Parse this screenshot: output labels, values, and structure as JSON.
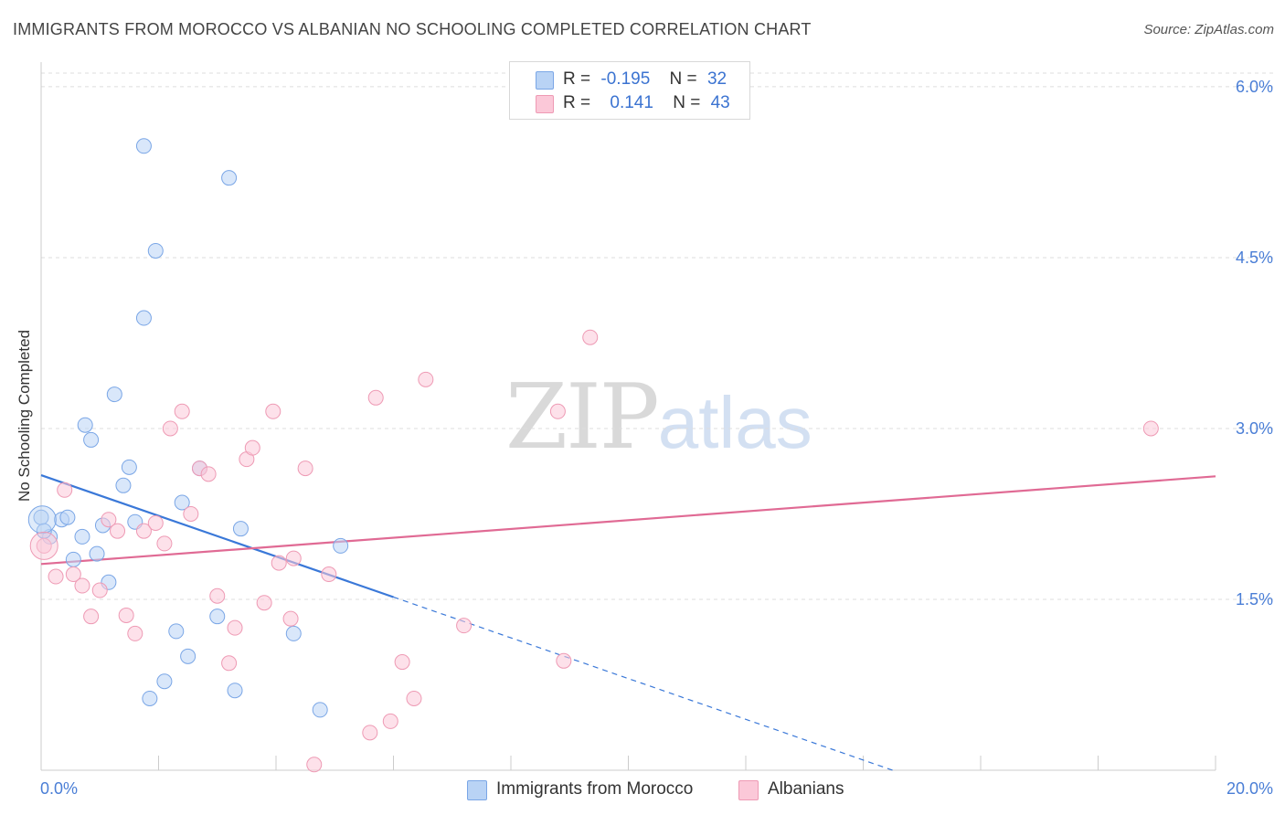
{
  "title": "IMMIGRANTS FROM MOROCCO VS ALBANIAN NO SCHOOLING COMPLETED CORRELATION CHART",
  "source": "Source: ZipAtlas.com",
  "watermark": {
    "zip": "ZIP",
    "atlas": "atlas"
  },
  "legend": {
    "rows": [
      {
        "r_label": "R =",
        "r_value": "-0.195",
        "n_label": "N =",
        "n_value": "32",
        "color": "#b9d3f5",
        "border": "#7aa6e6"
      },
      {
        "r_label": "R =",
        "r_value": "0.141",
        "n_label": "N =",
        "n_value": "43",
        "color": "#fbc8d8",
        "border": "#ee9ab4"
      }
    ]
  },
  "bottom_legend": [
    {
      "label": "Immigrants from Morocco",
      "color": "#b9d3f5",
      "border": "#7aa6e6"
    },
    {
      "label": "Albanians",
      "color": "#fbc8d8",
      "border": "#ee9ab4"
    }
  ],
  "chart_data": {
    "type": "scatter",
    "title": "IMMIGRANTS FROM MOROCCO VS ALBANIAN NO SCHOOLING COMPLETED CORRELATION CHART",
    "xlabel": "",
    "ylabel": "No Schooling Completed",
    "xlim": [
      0,
      20
    ],
    "ylim": [
      0,
      6.2
    ],
    "x_ticks": [
      "0.0%",
      "20.0%"
    ],
    "y_ticks": [
      {
        "value": 1.5,
        "label": "1.5%"
      },
      {
        "value": 3.0,
        "label": "3.0%"
      },
      {
        "value": 4.5,
        "label": "4.5%"
      },
      {
        "value": 6.0,
        "label": "6.0%"
      }
    ],
    "grid": "horizontal dashed",
    "legend_position": "top-center",
    "series": [
      {
        "name": "Immigrants from Morocco",
        "color": "#7aa6e6",
        "fill": "#b9d3f5",
        "r": -0.195,
        "n": 32,
        "trend": {
          "x0": 0,
          "y0": 2.59,
          "x1": 6.0,
          "y1": 1.52,
          "dash_to_x": 14.5,
          "dash_to_y": 0.0
        },
        "points": [
          [
            0.0,
            2.22
          ],
          [
            0.15,
            2.05
          ],
          [
            0.35,
            2.2
          ],
          [
            0.45,
            2.22
          ],
          [
            0.55,
            1.85
          ],
          [
            0.7,
            2.05
          ],
          [
            0.75,
            3.03
          ],
          [
            0.85,
            2.9
          ],
          [
            0.95,
            1.9
          ],
          [
            1.05,
            2.15
          ],
          [
            1.15,
            1.65
          ],
          [
            1.25,
            3.3
          ],
          [
            1.4,
            2.5
          ],
          [
            1.5,
            2.66
          ],
          [
            1.6,
            2.18
          ],
          [
            1.75,
            3.97
          ],
          [
            1.75,
            5.48
          ],
          [
            1.85,
            0.63
          ],
          [
            1.95,
            4.56
          ],
          [
            2.1,
            0.78
          ],
          [
            2.3,
            1.22
          ],
          [
            2.4,
            2.35
          ],
          [
            2.5,
            1.0
          ],
          [
            2.7,
            2.65
          ],
          [
            3.0,
            1.35
          ],
          [
            3.2,
            5.2
          ],
          [
            3.3,
            0.7
          ],
          [
            3.4,
            2.12
          ],
          [
            4.3,
            1.2
          ],
          [
            4.75,
            0.53
          ],
          [
            5.1,
            1.97
          ],
          [
            0.05,
            2.1
          ]
        ]
      },
      {
        "name": "Albanians",
        "color": "#ee9ab4",
        "fill": "#fbc8d8",
        "r": 0.141,
        "n": 43,
        "trend": {
          "x0": 0,
          "y0": 1.81,
          "x1": 20,
          "y1": 2.58
        },
        "points": [
          [
            0.05,
            1.97
          ],
          [
            0.25,
            1.7
          ],
          [
            0.4,
            2.46
          ],
          [
            0.55,
            1.72
          ],
          [
            0.7,
            1.62
          ],
          [
            0.85,
            1.35
          ],
          [
            1.0,
            1.58
          ],
          [
            1.15,
            2.2
          ],
          [
            1.3,
            2.1
          ],
          [
            1.45,
            1.36
          ],
          [
            1.6,
            1.2
          ],
          [
            1.75,
            2.1
          ],
          [
            1.95,
            2.17
          ],
          [
            2.1,
            1.99
          ],
          [
            2.2,
            3.0
          ],
          [
            2.4,
            3.15
          ],
          [
            2.55,
            2.25
          ],
          [
            2.7,
            2.65
          ],
          [
            2.85,
            2.6
          ],
          [
            3.0,
            1.53
          ],
          [
            3.2,
            0.94
          ],
          [
            3.3,
            1.25
          ],
          [
            3.5,
            2.73
          ],
          [
            3.6,
            2.83
          ],
          [
            3.8,
            1.47
          ],
          [
            3.95,
            3.15
          ],
          [
            4.05,
            1.82
          ],
          [
            4.25,
            1.33
          ],
          [
            4.3,
            1.86
          ],
          [
            4.5,
            2.65
          ],
          [
            4.65,
            0.05
          ],
          [
            4.9,
            1.72
          ],
          [
            5.6,
            0.33
          ],
          [
            5.7,
            3.27
          ],
          [
            5.95,
            0.43
          ],
          [
            6.15,
            0.95
          ],
          [
            6.35,
            0.63
          ],
          [
            6.55,
            3.43
          ],
          [
            7.2,
            1.27
          ],
          [
            8.8,
            3.15
          ],
          [
            8.9,
            0.96
          ],
          [
            9.35,
            3.8
          ],
          [
            18.9,
            3.0
          ]
        ]
      }
    ]
  }
}
